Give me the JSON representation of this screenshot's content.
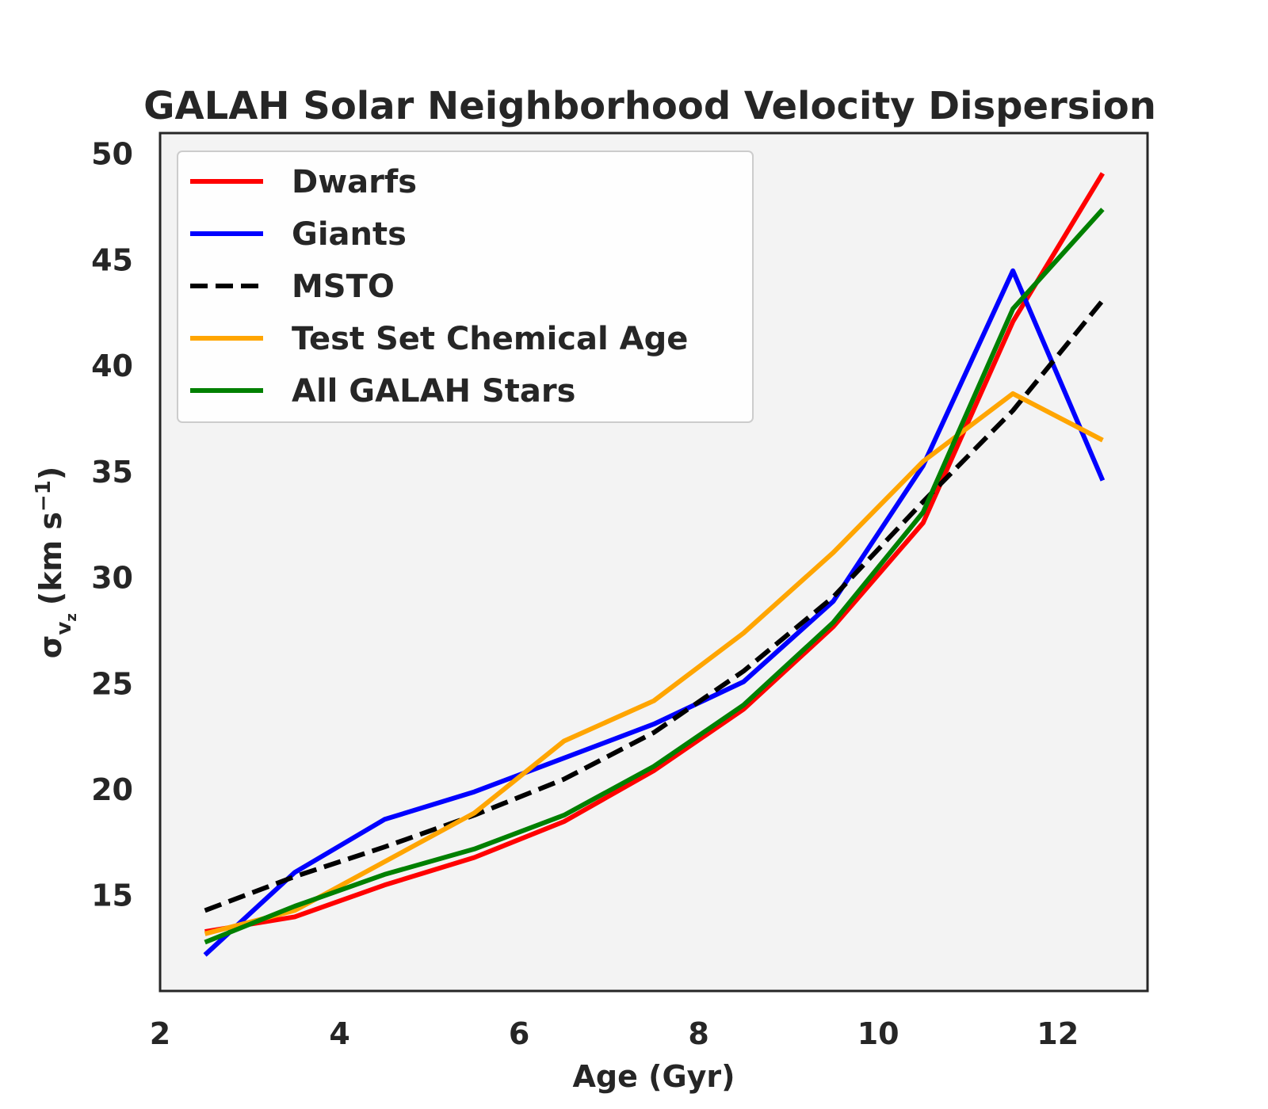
{
  "chart_data": {
    "type": "line",
    "title": "GALAH Solar Neighborhood Velocity Dispersion",
    "xlabel": "Age (Gyr)",
    "ylabel": {
      "prefix": "σ",
      "sub_v": "v",
      "sub_z": "z",
      "units": "(km s",
      "exp": "−1",
      "close": ")"
    },
    "xlim": [
      2,
      13
    ],
    "ylim": [
      10.5,
      51
    ],
    "xticks": [
      2,
      4,
      6,
      8,
      10,
      12
    ],
    "yticks": [
      15,
      20,
      25,
      30,
      35,
      40,
      45,
      50
    ],
    "grid": false,
    "legend_position": "top-left",
    "x": [
      2.5,
      3.5,
      4.5,
      5.5,
      6.5,
      7.5,
      8.5,
      9.5,
      10.5,
      11.5,
      12.5
    ],
    "series": [
      {
        "name": "Dwarfs",
        "color": "#ff0000",
        "dashed": false,
        "values": [
          13.3,
          14.0,
          15.5,
          16.8,
          18.5,
          20.9,
          23.8,
          27.7,
          32.6,
          42.1,
          49.1
        ]
      },
      {
        "name": "Giants",
        "color": "#0000ff",
        "dashed": false,
        "values": [
          12.2,
          16.1,
          18.6,
          19.9,
          21.5,
          23.1,
          25.1,
          28.9,
          35.3,
          44.5,
          34.6
        ]
      },
      {
        "name": "MSTO",
        "color": "#000000",
        "dashed": true,
        "values": [
          14.3,
          15.9,
          17.3,
          18.8,
          20.5,
          22.7,
          25.6,
          29.1,
          33.6,
          37.9,
          43.1
        ]
      },
      {
        "name": "Test Set Chemical Age",
        "color": "#ffa500",
        "dashed": false,
        "values": [
          13.2,
          14.3,
          16.6,
          18.9,
          22.3,
          24.2,
          27.4,
          31.2,
          35.5,
          38.7,
          36.5
        ]
      },
      {
        "name": "All GALAH Stars",
        "color": "#008000",
        "dashed": false,
        "values": [
          12.8,
          14.5,
          16.0,
          17.2,
          18.8,
          21.1,
          24.0,
          27.9,
          33.1,
          42.7,
          47.4
        ]
      }
    ]
  }
}
